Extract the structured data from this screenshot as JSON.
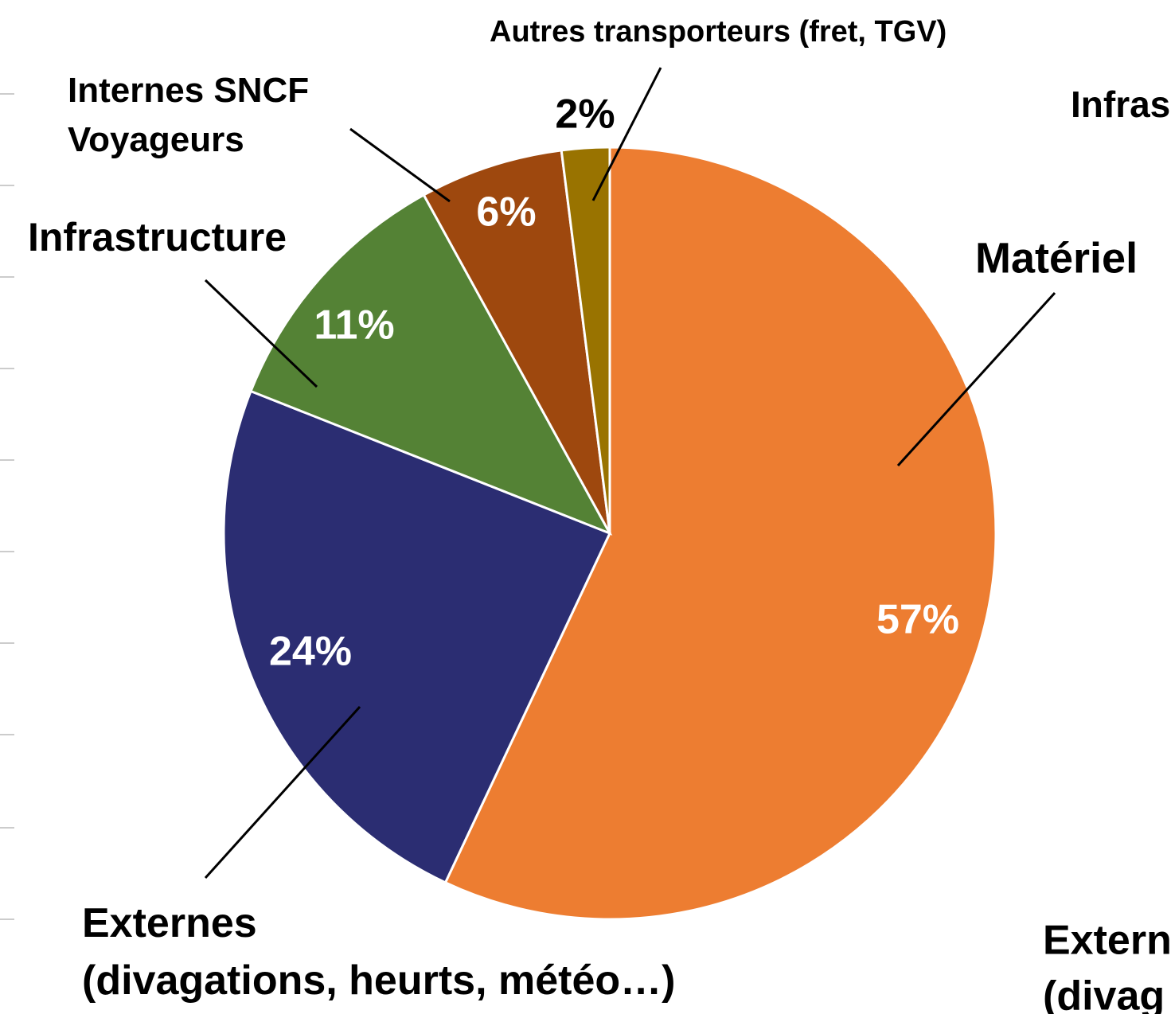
{
  "chart_data": {
    "type": "pie",
    "categories": [
      "Matériel",
      "Externes\n(divagations, heurts, météo…)",
      "Infrastructure",
      "Internes SNCF\nVoyageurs",
      "Autres transporteurs (fret, TGV)"
    ],
    "values": [
      57,
      24,
      11,
      6,
      2
    ],
    "value_labels": [
      "57%",
      "24%",
      "11%",
      "6%",
      "2%"
    ],
    "colors": [
      "#ED7D31",
      "#2B2D72",
      "#548235",
      "#9E480E",
      "#997300"
    ],
    "clipped_labels": [
      "Infras",
      "Extern",
      "(divag"
    ]
  }
}
